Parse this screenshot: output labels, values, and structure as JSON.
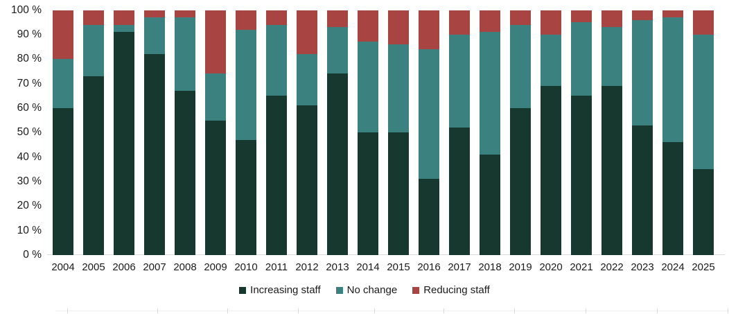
{
  "chart_data": {
    "type": "bar",
    "stacked": true,
    "orientation": "vertical",
    "title": "",
    "xlabel": "",
    "ylabel": "",
    "ylim": [
      0,
      100
    ],
    "grid": false,
    "legend_position": "bottom",
    "y_tick_labels": [
      "100 %",
      "90 %",
      "80 %",
      "70 %",
      "60 %",
      "50 %",
      "40 %",
      "30 %",
      "20 %",
      "10 %",
      "0 %"
    ],
    "y_tick_values": [
      100,
      90,
      80,
      70,
      60,
      50,
      40,
      30,
      20,
      10,
      0
    ],
    "categories": [
      "2004",
      "2005",
      "2006",
      "2007",
      "2008",
      "2009",
      "2010",
      "2011",
      "2012",
      "2013",
      "2014",
      "2015",
      "2016",
      "2017",
      "2018",
      "2019",
      "2020",
      "2021",
      "2022",
      "2023",
      "2024",
      "2025"
    ],
    "series": [
      {
        "name": "Increasing staff",
        "color": "#17382f",
        "values": [
          60,
          73,
          91,
          82,
          67,
          55,
          47,
          65,
          61,
          74,
          50,
          50,
          31,
          52,
          41,
          60,
          69,
          65,
          69,
          53,
          46,
          35
        ]
      },
      {
        "name": "No change",
        "color": "#3a8180",
        "values": [
          20,
          21,
          3,
          15,
          30,
          19,
          45,
          29,
          21,
          19,
          37,
          36,
          53,
          38,
          50,
          34,
          21,
          30,
          24,
          43,
          51,
          55
        ]
      },
      {
        "name": "Reducing staff",
        "color": "#a84543",
        "values": [
          20,
          6,
          6,
          3,
          3,
          26,
          8,
          6,
          18,
          7,
          13,
          14,
          16,
          10,
          9,
          6,
          10,
          5,
          7,
          4,
          3,
          10
        ]
      }
    ],
    "colors": {
      "axis_line": "#d9d9d9",
      "text": "#1a1a1a"
    }
  }
}
